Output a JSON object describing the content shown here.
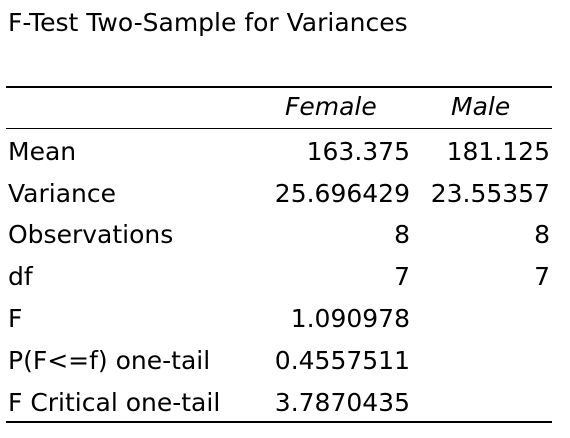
{
  "title": "F-Test Two-Sample for Variances",
  "headers": [
    "Female",
    "Male"
  ],
  "rows": [
    {
      "label": "Mean",
      "female": "163.375",
      "male": "181.125"
    },
    {
      "label": "Variance",
      "female": "25.696429",
      "male": "23.55357"
    },
    {
      "label": "Observations",
      "female": "8",
      "male": "8"
    },
    {
      "label": "df",
      "female": "7",
      "male": "7"
    },
    {
      "label": "F",
      "female": "1.090978",
      "male": ""
    },
    {
      "label": "P(F<=f) one-tail",
      "female": "0.4557511",
      "male": ""
    },
    {
      "label": "F Critical one-tail",
      "female": "3.7870435",
      "male": ""
    }
  ]
}
